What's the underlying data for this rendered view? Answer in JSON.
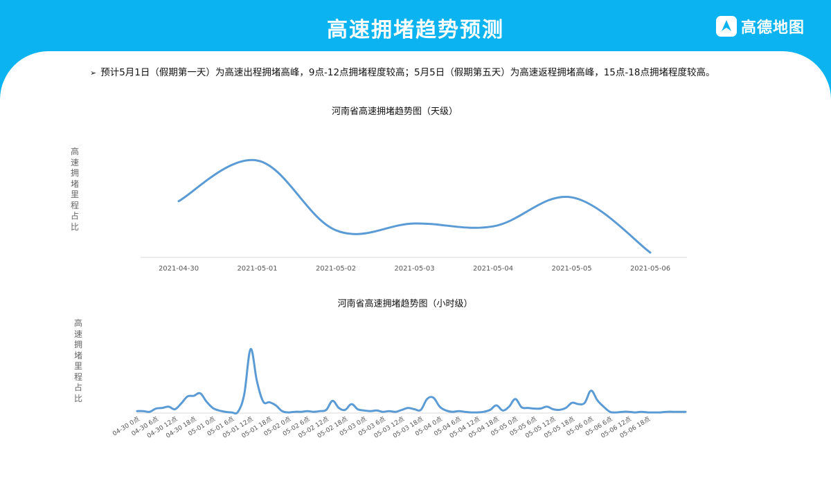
{
  "header": {
    "title": "高速拥堵趋势预测",
    "logo_text": "高德地图"
  },
  "bullet": {
    "marker": "➢",
    "text": "预计5月1日（假期第一天）为高速出程拥堵高峰，9点-12点拥堵程度较高；5月5日（假期第五天）为高速返程拥堵高峰，15点-18点拥堵程度较高。"
  },
  "colors": {
    "header": "#0bb4f0",
    "line": "#5b9bd5",
    "axis": "#d9d9d9"
  },
  "chart_data": [
    {
      "type": "line",
      "title": "河南省高速拥堵趋势图（天级）",
      "ylabel": "高速拥堵里程占比",
      "categories": [
        "2021-04-30",
        "2021-05-01",
        "2021-05-02",
        "2021-05-03",
        "2021-05-04",
        "2021-05-05",
        "2021-05-06"
      ],
      "values": [
        0.58,
        1.0,
        0.28,
        0.35,
        0.32,
        0.62,
        0.05
      ],
      "ylim": [
        0,
        1.05
      ],
      "smooth": true,
      "grid": false
    },
    {
      "type": "line",
      "title": "河南省高速拥堵趋势图（小时级）",
      "ylabel": "高速拥堵里程占比",
      "tick_labels": [
        "04-30 0点",
        "04-30 6点",
        "04-30 12点",
        "04-30 18点",
        "05-01 0点",
        "05-01 6点",
        "05-01 12点",
        "05-01 18点",
        "05-02 0点",
        "05-02 6点",
        "05-02 12点",
        "05-02 18点",
        "05-03 0点",
        "05-03 6点",
        "05-03 12点",
        "05-03 18点",
        "05-04 0点",
        "05-04 6点",
        "05-04 12点",
        "05-04 18点",
        "05-05 0点",
        "05-05 6点",
        "05-05 12点",
        "05-05 18点",
        "05-06 0点",
        "05-06 6点",
        "05-06 12点",
        "05-06 18点"
      ],
      "values": [
        0.03,
        0.03,
        0.02,
        0.07,
        0.08,
        0.1,
        0.06,
        0.15,
        0.26,
        0.27,
        0.31,
        0.18,
        0.08,
        0.04,
        0.02,
        0.01,
        0.02,
        0.3,
        1.0,
        0.5,
        0.18,
        0.17,
        0.12,
        0.03,
        0.01,
        0.02,
        0.02,
        0.03,
        0.02,
        0.03,
        0.05,
        0.19,
        0.08,
        0.05,
        0.14,
        0.06,
        0.04,
        0.03,
        0.04,
        0.02,
        0.03,
        0.02,
        0.05,
        0.08,
        0.06,
        0.05,
        0.22,
        0.24,
        0.1,
        0.04,
        0.02,
        0.03,
        0.02,
        0.01,
        0.01,
        0.02,
        0.05,
        0.12,
        0.04,
        0.1,
        0.22,
        0.09,
        0.08,
        0.07,
        0.07,
        0.1,
        0.06,
        0.05,
        0.08,
        0.16,
        0.14,
        0.16,
        0.35,
        0.2,
        0.1,
        0.02,
        0.01,
        0.02,
        0.02,
        0.01,
        0.02,
        0.01,
        0.01,
        0.01,
        0.02,
        0.02,
        0.02,
        0.02
      ],
      "ylim": [
        0,
        1.05
      ],
      "smooth": true,
      "grid": false
    }
  ]
}
